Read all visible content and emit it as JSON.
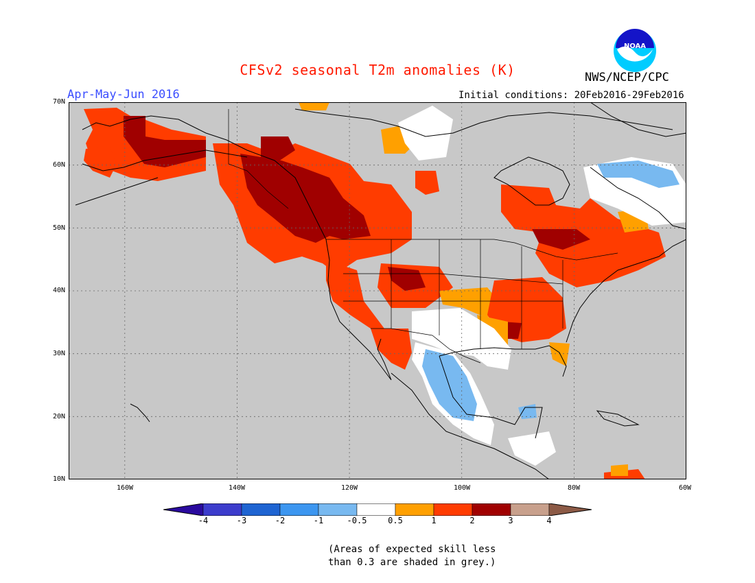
{
  "title": "CFSv2 seasonal T2m anomalies (K)",
  "period": "Apr-May-Jun 2016",
  "initial_conditions": "Initial conditions: 20Feb2016-29Feb2016",
  "organization": "NWS/NCEP/CPC",
  "logo_text": "NOAA",
  "lat_labels": [
    "70N",
    "60N",
    "50N",
    "40N",
    "30N",
    "20N",
    "10N"
  ],
  "lon_labels": [
    "160W",
    "140W",
    "120W",
    "100W",
    "80W",
    "60W"
  ],
  "colorbar": {
    "labels": [
      "-4",
      "-3",
      "-2",
      "-1",
      "-0.5",
      "0.5",
      "1",
      "2",
      "3",
      "4"
    ],
    "colors": [
      "#2a0a9e",
      "#3c3ccc",
      "#1e64d2",
      "#3c96f0",
      "#78b9f0",
      "#ffffff",
      "#ffa000",
      "#ff3c00",
      "#a00000",
      "#c8a08c",
      "#8c5a46"
    ]
  },
  "note": {
    "line1": "(Areas of expected skill less",
    "line2": "than 0.3 are shaded in grey.)"
  },
  "map": {
    "background": "#c8c8c8",
    "extent": {
      "lon": [
        -170,
        -60
      ],
      "lat": [
        10,
        70
      ]
    },
    "grid_lons": [
      -160,
      -140,
      -120,
      -100,
      -80,
      -60
    ],
    "grid_lats": [
      20,
      30,
      40,
      50,
      60
    ]
  }
}
